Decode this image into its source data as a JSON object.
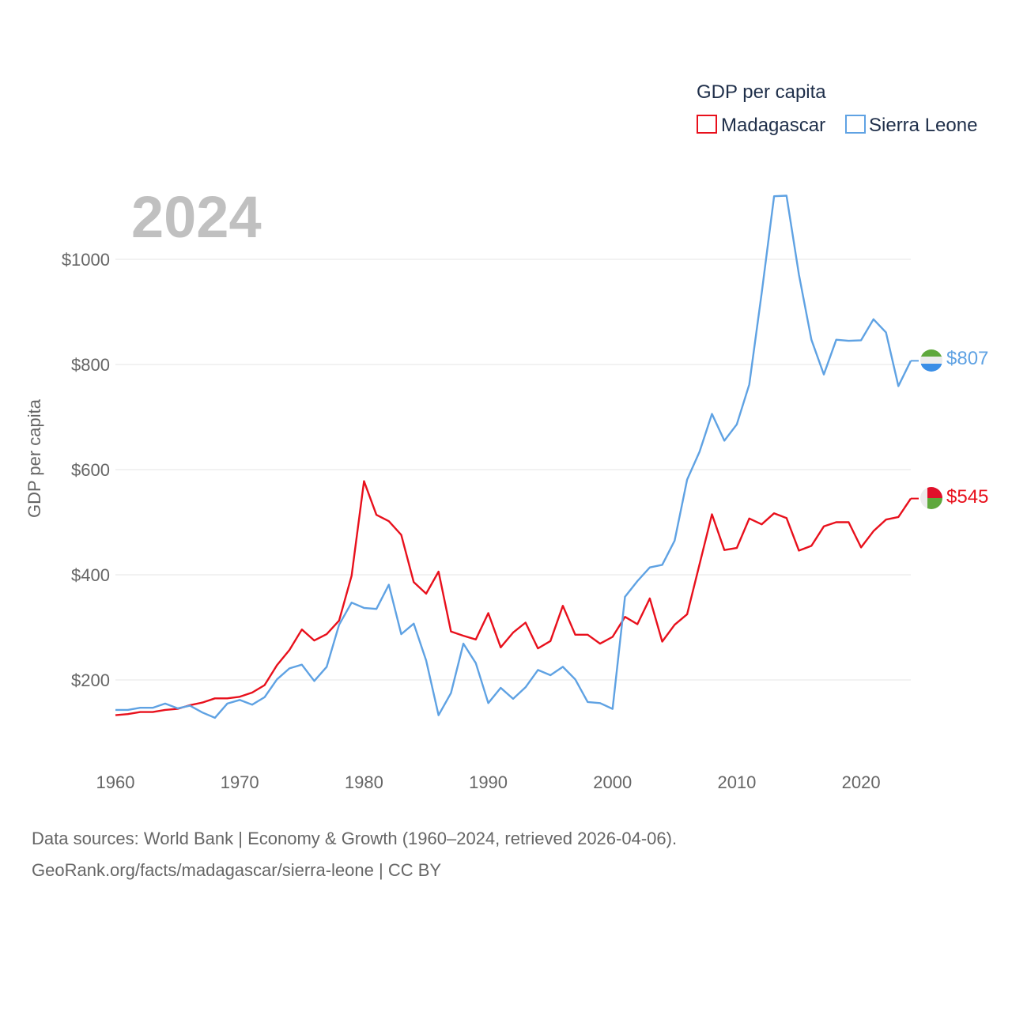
{
  "chart_data": {
    "type": "line",
    "title": "GDP per capita",
    "ylabel": "GDP per capita",
    "xlabel": "",
    "year_watermark": "2024",
    "xlim": [
      1960,
      2024
    ],
    "ylim": [
      100,
      1130
    ],
    "x_ticks": [
      1960,
      1970,
      1980,
      1990,
      2000,
      2010,
      2020
    ],
    "x_tick_labels": [
      "1960",
      "1970",
      "1980",
      "1990",
      "2000",
      "2010",
      "2020"
    ],
    "y_ticks": [
      200,
      400,
      600,
      800,
      1000
    ],
    "y_tick_labels": [
      "$200",
      "$400",
      "$600",
      "$800",
      "$1000"
    ],
    "grid": true,
    "legend": {
      "title": "GDP per capita",
      "position": "top-right"
    },
    "x": [
      1960,
      1961,
      1962,
      1963,
      1964,
      1965,
      1966,
      1967,
      1968,
      1969,
      1970,
      1971,
      1972,
      1973,
      1974,
      1975,
      1976,
      1977,
      1978,
      1979,
      1980,
      1981,
      1982,
      1983,
      1984,
      1985,
      1986,
      1987,
      1988,
      1989,
      1990,
      1991,
      1992,
      1993,
      1994,
      1995,
      1996,
      1997,
      1998,
      1999,
      2000,
      2001,
      2002,
      2003,
      2004,
      2005,
      2006,
      2007,
      2008,
      2009,
      2010,
      2011,
      2012,
      2013,
      2014,
      2015,
      2016,
      2017,
      2018,
      2019,
      2020,
      2021,
      2022,
      2023,
      2024
    ],
    "series": [
      {
        "name": "Madagascar",
        "color": "#e8101c",
        "end_label": "$545",
        "values": [
          133,
          135,
          139,
          139,
          143,
          145,
          152,
          157,
          165,
          165,
          168,
          176,
          190,
          228,
          257,
          296,
          275,
          287,
          313,
          398,
          578,
          514,
          502,
          476,
          386,
          364,
          406,
          292,
          284,
          277,
          327,
          262,
          290,
          309,
          260,
          274,
          341,
          286,
          286,
          269,
          282,
          320,
          306,
          355,
          273,
          305,
          325,
          420,
          515,
          447,
          451,
          507,
          496,
          517,
          508,
          446,
          455,
          492,
          500,
          500,
          452,
          483,
          505,
          510,
          545
        ]
      },
      {
        "name": "Sierra Leone",
        "color": "#5fa2e3",
        "end_label": "$807",
        "values": [
          143,
          143,
          147,
          147,
          155,
          146,
          151,
          138,
          128,
          155,
          162,
          153,
          167,
          201,
          222,
          229,
          198,
          225,
          305,
          347,
          337,
          335,
          381,
          287,
          307,
          237,
          133,
          175,
          269,
          232,
          156,
          185,
          164,
          186,
          219,
          209,
          225,
          201,
          158,
          156,
          145,
          358,
          388,
          414,
          419,
          465,
          581,
          634,
          706,
          655,
          686,
          762,
          936,
          1120,
          1121,
          971,
          847,
          781,
          847,
          845,
          846,
          886,
          861,
          759,
          807
        ]
      }
    ],
    "source_line1": "Data sources: World Bank | Economy & Growth (1960–2024, retrieved 2026-04-06).",
    "source_line2": "GeoRank.org/facts/madagascar/sierra-leone | CC BY"
  }
}
